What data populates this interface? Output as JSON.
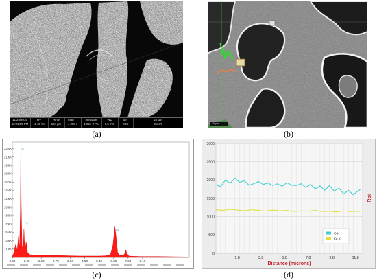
{
  "captions": {
    "a": "(a)",
    "b": "(b)",
    "c": "(c)",
    "d": "(d)"
  },
  "sem_a": {
    "databar": [
      {
        "top": "11/25/2019",
        "bottom": "12:21:09 PM"
      },
      {
        "top": "HV",
        "bottom": "15.00 kV"
      },
      {
        "top": "HFW",
        "bottom": "104 µm"
      },
      {
        "top": "mag ▢",
        "bottom": "4 000 x"
      },
      {
        "top": "pressure",
        "bottom": "1.56e-2 Pa"
      },
      {
        "top": "WD",
        "bottom": "9.5 mm"
      },
      {
        "top": "det",
        "bottom": "CBS"
      },
      {
        "top": "20 µm",
        "bottom": "IMNR"
      }
    ]
  },
  "sem_b": {
    "scalebar": "10 µm"
  },
  "chart_data": [
    {
      "type": "line",
      "panel": "c",
      "title": "",
      "xlabel": "",
      "ylabel": "",
      "xlim": [
        0.0,
        11.0
      ],
      "ylim": [
        0,
        24.8
      ],
      "x_ticks": [
        0.0,
        0.9,
        1.8,
        2.7,
        3.6,
        4.5,
        5.4,
        6.3,
        7.2,
        8.1
      ],
      "x_tick_labels": [
        "0.00",
        "0.90",
        "1.80",
        "2.70",
        "3.60",
        "4.50",
        "5.40",
        "6.30",
        "7.20",
        "8.10"
      ],
      "y_ticks": [
        0,
        1.8,
        3.6,
        5.4,
        7.2,
        9.0,
        10.8,
        12.6,
        14.4,
        16.2,
        18.0,
        19.8,
        21.6,
        23.4
      ],
      "y_tick_labels": [
        "",
        "1.8K",
        "3.6K",
        "5.4K",
        "7.2K",
        "9.0K",
        "10.8K",
        "12.6K",
        "14.4K",
        "16.2K",
        "18.0K",
        "19.8K",
        "21.6K",
        "23.4K"
      ],
      "peak_labels": [
        {
          "text": "O",
          "x": 0.52,
          "y": 23.0
        },
        {
          "text": "Fe",
          "x": 0.72,
          "y": 7.0
        },
        {
          "text": "Fe",
          "x": 6.4,
          "y": 5.6
        }
      ],
      "series": [
        {
          "color": "#ff1a1a",
          "x": [
            0.0,
            0.1,
            0.18,
            0.22,
            0.3,
            0.38,
            0.45,
            0.5,
            0.525,
            0.55,
            0.6,
            0.65,
            0.7,
            0.72,
            0.75,
            0.8,
            0.86,
            0.95,
            1.1,
            1.4,
            1.8,
            2.4,
            3.0,
            3.6,
            4.2,
            4.8,
            5.4,
            5.8,
            6.1,
            6.25,
            6.38,
            6.45,
            6.55,
            6.7,
            6.9,
            7.0,
            7.06,
            7.12,
            7.25,
            7.5,
            8.0,
            9.0,
            10.0,
            11.0
          ],
          "y": [
            0.2,
            1.0,
            2.4,
            3.0,
            1.4,
            4.5,
            2.0,
            10.0,
            24.3,
            12.0,
            2.5,
            2.0,
            4.0,
            6.2,
            3.5,
            1.8,
            3.4,
            1.0,
            0.6,
            0.5,
            0.45,
            0.4,
            0.4,
            0.35,
            0.3,
            0.3,
            0.3,
            0.35,
            0.6,
            2.5,
            6.6,
            4.5,
            1.0,
            0.4,
            0.4,
            0.9,
            1.6,
            0.9,
            0.3,
            0.25,
            0.2,
            0.2,
            0.15,
            0.1
          ]
        }
      ]
    },
    {
      "type": "line",
      "panel": "d",
      "title": "",
      "xlabel": "Distance (microns)",
      "ylabel": "Roi",
      "xlim": [
        0,
        12.4
      ],
      "ylim": [
        0,
        3000
      ],
      "x_ticks": [
        1.8,
        3.8,
        5.8,
        7.8,
        9.8,
        11.8
      ],
      "x_tick_labels": [
        "1.8",
        "3.8",
        "5.8",
        "7.8",
        "9.8",
        "11.8"
      ],
      "y_ticks": [
        0,
        500,
        1000,
        1500,
        2000,
        2500,
        3000
      ],
      "y_tick_labels": [
        "0",
        "500",
        "1000",
        "1500",
        "2000",
        "2500",
        "3000"
      ],
      "grid": true,
      "legend": "bottom-right",
      "series": [
        {
          "name": "O K",
          "color": "#3ecfcf",
          "x": [
            0,
            0.4,
            0.8,
            1.2,
            1.6,
            2.0,
            2.4,
            2.8,
            3.2,
            3.6,
            4.0,
            4.4,
            4.8,
            5.2,
            5.6,
            6.0,
            6.4,
            6.8,
            7.2,
            7.6,
            8.0,
            8.4,
            8.8,
            9.2,
            9.6,
            10.0,
            10.4,
            10.8,
            11.2,
            11.6,
            12.0,
            12.2
          ],
          "y": [
            1870,
            1820,
            2000,
            1910,
            2050,
            1940,
            1980,
            1860,
            1900,
            1960,
            1880,
            1920,
            1850,
            1900,
            1830,
            1930,
            1860,
            1850,
            1900,
            1800,
            1880,
            1760,
            1840,
            1720,
            1850,
            1700,
            1780,
            1620,
            1720,
            1600,
            1700,
            1740
          ]
        },
        {
          "name": "Fe K",
          "color": "#e0e03c",
          "x": [
            0,
            0.6,
            1.2,
            1.8,
            2.4,
            3.0,
            3.6,
            4.2,
            4.8,
            5.4,
            6.0,
            6.6,
            7.2,
            7.8,
            8.4,
            9.0,
            9.6,
            10.2,
            10.8,
            11.4,
            12.0,
            12.2
          ],
          "y": [
            1190,
            1170,
            1200,
            1180,
            1160,
            1190,
            1170,
            1150,
            1180,
            1160,
            1170,
            1140,
            1160,
            1150,
            1170,
            1140,
            1150,
            1130,
            1160,
            1140,
            1150,
            1140
          ]
        }
      ]
    }
  ]
}
